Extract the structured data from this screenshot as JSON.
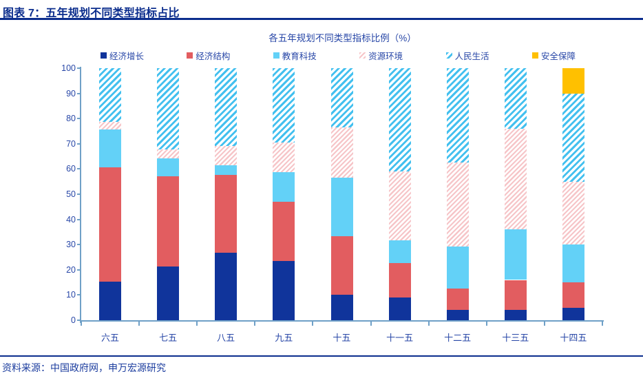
{
  "header": {
    "title": "图表 7：五年规划不同类型指标占比"
  },
  "footer": {
    "source": "资料来源：中国政府网，申万宏源研究"
  },
  "chart_data": {
    "type": "bar",
    "stacked": true,
    "title": "各五年规划不同类型指标比例（%）",
    "categories": [
      "六五",
      "七五",
      "八五",
      "九五",
      "十五",
      "十一五",
      "十二五",
      "十三五",
      "十四五"
    ],
    "series": [
      {
        "name": "经济增长",
        "pattern": "solid",
        "color": "#10349b",
        "values": [
          15.2,
          21.4,
          26.9,
          23.5,
          10.0,
          9.1,
          4.2,
          4.0,
          5.0
        ]
      },
      {
        "name": "经济结构",
        "pattern": "solid",
        "color": "#e25d60",
        "values": [
          45.4,
          35.7,
          30.8,
          23.5,
          23.3,
          13.6,
          8.3,
          12.0,
          10.0
        ]
      },
      {
        "name": "教育科技",
        "pattern": "solid",
        "color": "#63d1f7",
        "values": [
          15.2,
          7.1,
          3.8,
          11.8,
          23.3,
          9.1,
          16.7,
          20.0,
          15.0
        ]
      },
      {
        "name": "资源环境",
        "pattern": "diagonal-dense",
        "color": "#f6c5c8",
        "values": [
          3.0,
          3.6,
          7.7,
          11.8,
          20.0,
          27.3,
          33.3,
          40.0,
          25.0
        ]
      },
      {
        "name": "人民生活",
        "pattern": "diagonal",
        "color": "#43c0ef",
        "values": [
          21.2,
          32.2,
          30.8,
          29.4,
          23.4,
          40.9,
          37.5,
          24.0,
          35.0
        ]
      },
      {
        "name": "安全保障",
        "pattern": "solid",
        "color": "#ffc000",
        "values": [
          0,
          0,
          0,
          0,
          0,
          0,
          0,
          0,
          10.0
        ]
      }
    ],
    "ylim": [
      0,
      100
    ],
    "yticks": [
      0,
      10,
      20,
      30,
      40,
      50,
      60,
      70,
      80,
      90,
      100
    ],
    "grid": false,
    "legend_position": "top"
  }
}
